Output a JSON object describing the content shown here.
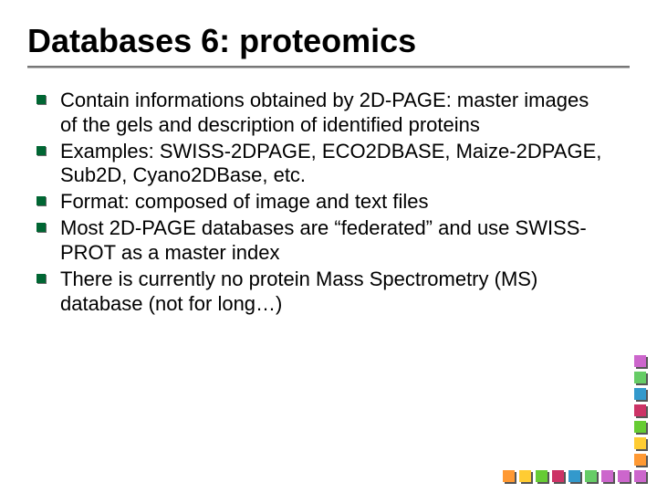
{
  "title": "Databases 6: proteomics",
  "title_fontsize": 36,
  "title_font": "Comic Sans MS",
  "body_fontsize": 22,
  "body_font": "Trebuchet MS",
  "bullet_color": "#006633",
  "bullet_shadow": "#666666",
  "rule_color_top": "#777777",
  "rule_color_bottom": "#bbbbbb",
  "background_color": "#ffffff",
  "bullets": [
    "Contain informations obtained by 2D-PAGE: master images of the gels and description of identified proteins",
    "Examples: SWISS-2DPAGE, ECO2DBASE, Maize-2DPAGE, Sub2D, Cyano2DBase, etc.",
    "Format: composed of image and text files",
    "Most 2D-PAGE databases are “federated” and use SWISS-PROT as a master index",
    "There is currently no protein Mass Spectrometry (MS) database (not for long…)"
  ],
  "deco_column_colors": [
    "#cc66cc",
    "#66cc66",
    "#3399cc",
    "#cc3366",
    "#66cc33",
    "#ffcc33",
    "#ff9933",
    "#cc66cc"
  ],
  "deco_row_colors": [
    "#ff9933",
    "#ffcc33",
    "#66cc33",
    "#cc3366",
    "#3399cc",
    "#66cc66",
    "#cc66cc",
    "#cc66cc"
  ]
}
